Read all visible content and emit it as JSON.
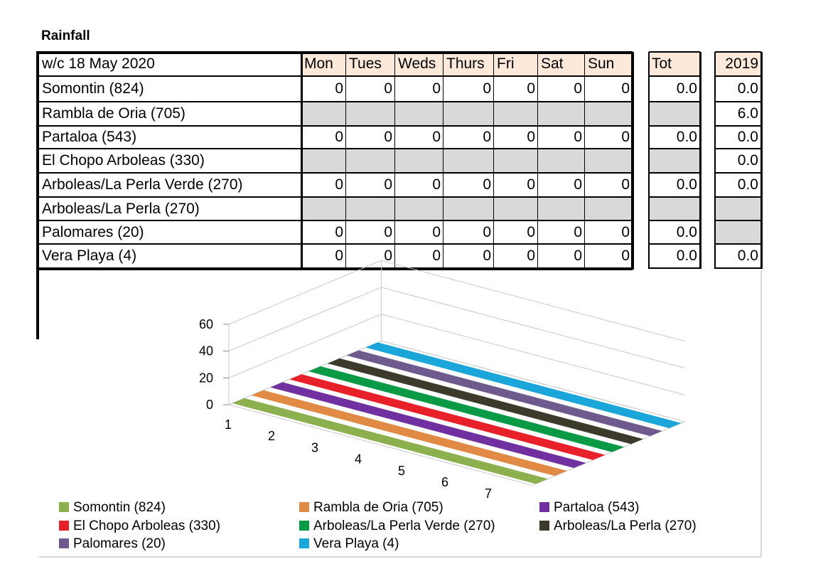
{
  "title": "Rainfall",
  "table": {
    "week_label": "w/c 18 May  2020",
    "day_headers": [
      "Mon",
      "Tues",
      "Weds",
      "Thurs",
      "Fri",
      "Sat",
      "Sun"
    ],
    "tot_header": "Tot",
    "prev_header": "2019",
    "rows": [
      {
        "station": "Somontin (824)",
        "days": [
          "0",
          "0",
          "0",
          "0",
          "0",
          "0",
          "0"
        ],
        "tot": "0.0",
        "prev": "0.0"
      },
      {
        "station": "Rambla de Oria (705)",
        "days": [
          "",
          "",
          "",
          "",
          "",
          "",
          ""
        ],
        "tot": "",
        "prev": "6.0"
      },
      {
        "station": "Partaloa (543)",
        "days": [
          "0",
          "0",
          "0",
          "0",
          "0",
          "0",
          "0"
        ],
        "tot": "0.0",
        "prev": "0.0"
      },
      {
        "station": "El Chopo Arboleas (330)",
        "days": [
          "",
          "",
          "",
          "",
          "",
          "",
          ""
        ],
        "tot": "",
        "prev": "0.0"
      },
      {
        "station": "Arboleas/La Perla Verde (270)",
        "days": [
          "0",
          "0",
          "0",
          "0",
          "0",
          "0",
          "0"
        ],
        "tot": "0.0",
        "prev": "0.0"
      },
      {
        "station": "Arboleas/La Perla (270)",
        "days": [
          "",
          "",
          "",
          "",
          "",
          "",
          ""
        ],
        "tot": "",
        "prev": ""
      },
      {
        "station": "Palomares (20)",
        "days": [
          "0",
          "0",
          "0",
          "0",
          "0",
          "0",
          "0"
        ],
        "tot": "0.0",
        "prev": ""
      },
      {
        "station": "Vera Playa (4)",
        "days": [
          "0",
          "0",
          "0",
          "0",
          "0",
          "0",
          "0"
        ],
        "tot": "0.0",
        "prev": "0.0"
      }
    ]
  },
  "chart_data": {
    "type": "bar",
    "variant": "3d-ribbon",
    "x": [
      1,
      2,
      3,
      4,
      5,
      6,
      7
    ],
    "yticks": [
      0,
      20,
      40,
      60
    ],
    "ylim": [
      0,
      60
    ],
    "legend_position": "bottom",
    "series": [
      {
        "name": "Somontin (824)",
        "color": "#8db04f",
        "values": [
          0,
          0,
          0,
          0,
          0,
          0,
          0
        ]
      },
      {
        "name": "Rambla de Oria (705)",
        "color": "#e08a45",
        "values": [
          0,
          0,
          0,
          0,
          0,
          0,
          0
        ]
      },
      {
        "name": "Partaloa (543)",
        "color": "#7030a0",
        "values": [
          0,
          0,
          0,
          0,
          0,
          0,
          0
        ]
      },
      {
        "name": "El Chopo Arboleas (330)",
        "color": "#e8202a",
        "values": [
          0,
          0,
          0,
          0,
          0,
          0,
          0
        ]
      },
      {
        "name": "Arboleas/La Perla Verde (270)",
        "color": "#0a9a45",
        "values": [
          0,
          0,
          0,
          0,
          0,
          0,
          0
        ]
      },
      {
        "name": "Arboleas/La Perla (270)",
        "color": "#3c3a2a",
        "values": [
          0,
          0,
          0,
          0,
          0,
          0,
          0
        ]
      },
      {
        "name": "Palomares (20)",
        "color": "#6e5a8c",
        "values": [
          0,
          0,
          0,
          0,
          0,
          0,
          0
        ]
      },
      {
        "name": "Vera Playa (4)",
        "color": "#1aa6d9",
        "values": [
          0,
          0,
          0,
          0,
          0,
          0,
          0
        ]
      }
    ]
  }
}
